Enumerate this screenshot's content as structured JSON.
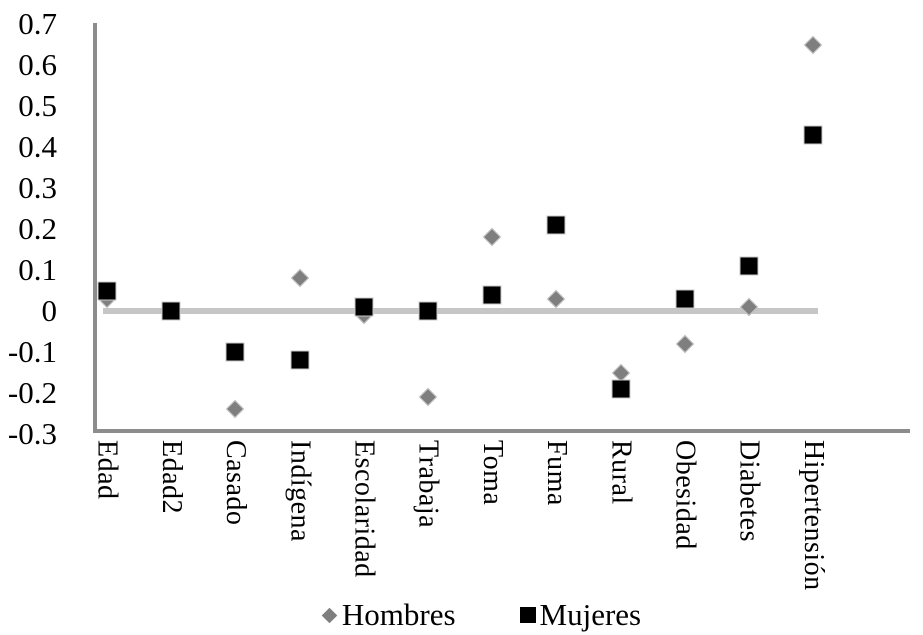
{
  "chart_data": {
    "type": "scatter",
    "title": "",
    "categories": [
      "Edad",
      "Edad2",
      "Casado",
      "Indígena",
      "Escolaridad",
      "Trabaja",
      "Toma",
      "Fuma",
      "Rural",
      "Obesidad",
      "Diabetes",
      "Hipertensión"
    ],
    "series": [
      {
        "name": "Hombres",
        "marker": "diamond",
        "color": "#7f7f7f",
        "values": [
          0.03,
          0.0,
          -0.24,
          0.08,
          -0.01,
          -0.21,
          0.18,
          0.03,
          -0.15,
          -0.08,
          0.01,
          0.65
        ]
      },
      {
        "name": "Mujeres",
        "marker": "square",
        "color": "#000000",
        "values": [
          0.05,
          0.0,
          -0.1,
          -0.12,
          0.01,
          0.0,
          0.04,
          0.21,
          -0.19,
          0.03,
          0.11,
          0.43
        ]
      }
    ],
    "ylim": [
      -0.3,
      0.7
    ],
    "yticks": [
      0.7,
      0.6,
      0.5,
      0.4,
      0.3,
      0.2,
      0.1,
      0,
      -0.1,
      -0.2,
      -0.3
    ],
    "ytick_labels": [
      "0.7",
      "0.6",
      "0.5",
      "0.4",
      "0.3",
      "0.2",
      "0.1",
      "0",
      "-0.1",
      "-0.2",
      "-0.3"
    ],
    "zero_line": {
      "value": 0,
      "color": "#c6c6c6"
    },
    "axis_color": "#8c8c8c",
    "legend_position": "bottom",
    "grid": false
  }
}
